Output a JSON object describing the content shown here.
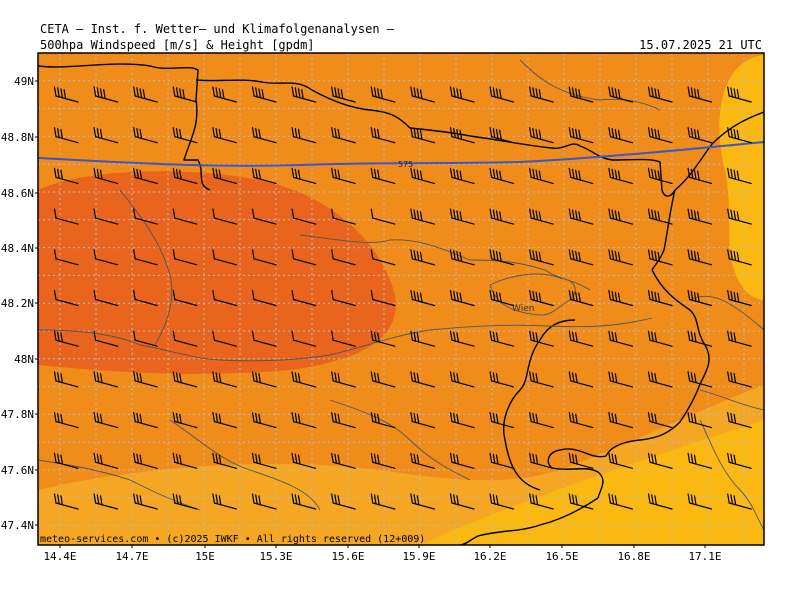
{
  "header": {
    "institute": "CETA — Inst. f. Wetter— und Klimafolgenanalysen —",
    "parameter": "500hpa Windspeed [m/s] & Height [gpdm]",
    "datetime": "15.07.2025 21 UTC"
  },
  "footer": {
    "credit": "meteo-services.com • (c)2025 IWKF • All rights reserved (12+009)"
  },
  "axes": {
    "lat_labels": [
      "49N",
      "48.8N",
      "48.6N",
      "48.4N",
      "48.2N",
      "48N",
      "47.8N",
      "47.6N",
      "47.4N"
    ],
    "lon_labels": [
      "14.4E",
      "14.7E",
      "15E",
      "15.3E",
      "15.6E",
      "15.9E",
      "16.2E",
      "16.5E",
      "16.8E",
      "17.1E"
    ]
  },
  "map": {
    "city_label": "Wien",
    "contour_label": "575",
    "colors": {
      "light": "#f5a623",
      "mid": "#ef8c1a",
      "dark": "#e9641c",
      "yellow": "#fbb810",
      "contour": "#3c55c8",
      "grid": "#bcbcbc"
    }
  }
}
